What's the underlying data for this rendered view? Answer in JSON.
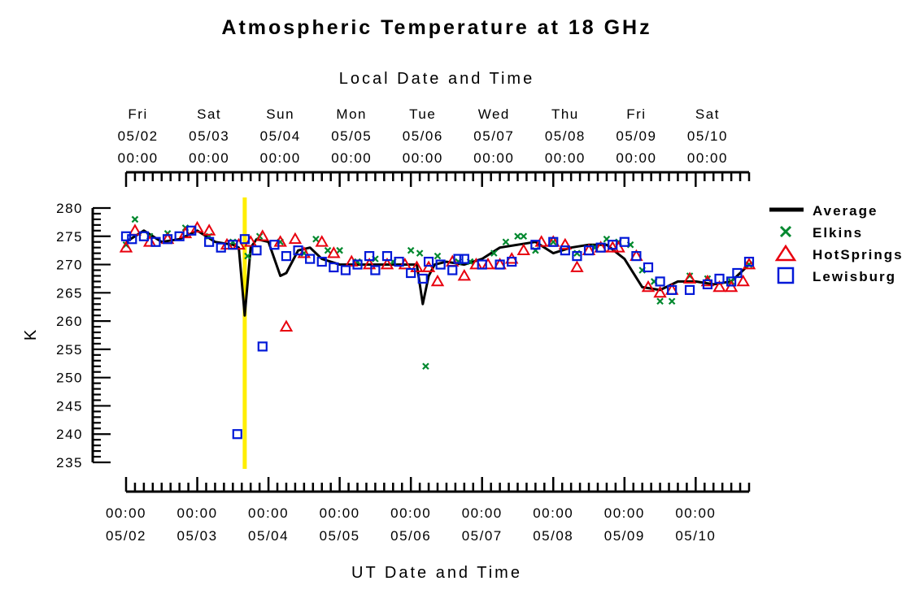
{
  "chart_data": {
    "type": "scatter",
    "title": "Atmospheric Temperature at 18 GHz",
    "top_axis_title": "Local Date and Time",
    "xlabel": "UT Date and Time",
    "ylabel": "K",
    "ylim": [
      235,
      280
    ],
    "yticks": [
      235,
      240,
      245,
      250,
      255,
      260,
      265,
      270,
      275,
      280
    ],
    "xlim": [
      "05/02 00:00",
      "05/10 18:00"
    ],
    "top_ticks": [
      {
        "day": "Fri",
        "date": "05/02",
        "time": "00:00"
      },
      {
        "day": "Sat",
        "date": "05/03",
        "time": "00:00"
      },
      {
        "day": "Sun",
        "date": "05/04",
        "time": "00:00"
      },
      {
        "day": "Mon",
        "date": "05/05",
        "time": "00:00"
      },
      {
        "day": "Tue",
        "date": "05/06",
        "time": "00:00"
      },
      {
        "day": "Wed",
        "date": "05/07",
        "time": "00:00"
      },
      {
        "day": "Thu",
        "date": "05/08",
        "time": "00:00"
      },
      {
        "day": "Fri",
        "date": "05/09",
        "time": "00:00"
      },
      {
        "day": "Sat",
        "date": "05/10",
        "time": "00:00"
      }
    ],
    "bottom_ticks": [
      {
        "time": "00:00",
        "date": "05/02"
      },
      {
        "time": "00:00",
        "date": "05/03"
      },
      {
        "time": "00:00",
        "date": "05/04"
      },
      {
        "time": "00:00",
        "date": "05/05"
      },
      {
        "time": "00:00",
        "date": "05/06"
      },
      {
        "time": "00:00",
        "date": "05/07"
      },
      {
        "time": "00:00",
        "date": "05/08"
      },
      {
        "time": "00:00",
        "date": "05/09"
      },
      {
        "time": "00:00",
        "date": "05/10"
      }
    ],
    "marker_line": {
      "x": "05/03 16:00",
      "color": "#ffee00"
    },
    "legend": {
      "position": "right"
    },
    "series": [
      {
        "name": "Average",
        "style": "line",
        "color": "#000000",
        "x": [
          "05/02 00:00",
          "05/02 06:00",
          "05/02 12:00",
          "05/02 18:00",
          "05/03 00:00",
          "05/03 06:00",
          "05/03 12:00",
          "05/03 14:00",
          "05/03 16:00",
          "05/03 18:00",
          "05/03 20:00",
          "05/04 00:00",
          "05/04 04:00",
          "05/04 06:00",
          "05/04 10:00",
          "05/04 14:00",
          "05/04 18:00",
          "05/05 00:00",
          "05/05 06:00",
          "05/05 12:00",
          "05/05 18:00",
          "05/05 22:00",
          "05/06 02:00",
          "05/06 04:00",
          "05/06 06:00",
          "05/06 08:00",
          "05/06 12:00",
          "05/06 18:00",
          "05/07 00:00",
          "05/07 06:00",
          "05/07 12:00",
          "05/07 18:00",
          "05/08 00:00",
          "05/08 06:00",
          "05/08 12:00",
          "05/08 18:00",
          "05/09 00:00",
          "05/09 06:00",
          "05/09 12:00",
          "05/09 18:00",
          "05/10 00:00",
          "05/10 06:00",
          "05/10 12:00",
          "05/10 18:00"
        ],
        "y": [
          274,
          276,
          274,
          274.5,
          276,
          274,
          273.5,
          273,
          261,
          273,
          274.5,
          274,
          268,
          268.5,
          272.5,
          273,
          271,
          270,
          270,
          270,
          270,
          270,
          270,
          263,
          268,
          270,
          270.5,
          270,
          271,
          273,
          273.5,
          274,
          272,
          273,
          273.5,
          273.5,
          271,
          266,
          265.5,
          267,
          267,
          266.5,
          267,
          270
        ]
      },
      {
        "name": "Elkins",
        "style": "x",
        "color": "#00882e",
        "x": [
          "05/02 00:00",
          "05/02 03:00",
          "05/02 08:00",
          "05/02 14:00",
          "05/02 20:00",
          "05/03 04:00",
          "05/03 12:00",
          "05/03 17:00",
          "05/03 21:00",
          "05/04 04:00",
          "05/04 12:00",
          "05/04 16:00",
          "05/04 20:00",
          "05/05 00:00",
          "05/05 06:00",
          "05/05 12:00",
          "05/05 18:00",
          "05/06 00:00",
          "05/06 03:00",
          "05/06 05:00",
          "05/06 09:00",
          "05/06 16:00",
          "05/06 20:00",
          "05/07 04:00",
          "05/07 08:00",
          "05/07 12:00",
          "05/07 14:00",
          "05/07 18:00",
          "05/08 00:00",
          "05/08 08:00",
          "05/08 14:00",
          "05/08 18:00",
          "05/08 22:00",
          "05/09 02:00",
          "05/09 06:00",
          "05/09 10:00",
          "05/09 12:00",
          "05/09 16:00",
          "05/09 22:00",
          "05/10 04:00",
          "05/10 12:00",
          "05/10 18:00"
        ],
        "y": [
          273.5,
          278,
          275,
          275.5,
          276.5,
          275,
          274,
          271.5,
          275,
          274,
          272,
          274.5,
          272.5,
          272.5,
          270.5,
          271,
          270.5,
          272.5,
          272,
          252,
          271.5,
          270.5,
          270.5,
          272,
          274,
          275,
          275,
          272.5,
          274,
          272,
          273,
          274.5,
          274,
          273.5,
          269,
          267,
          263.5,
          263.5,
          268,
          267.5,
          267,
          270
        ]
      },
      {
        "name": "HotSprings",
        "style": "triangle",
        "color": "#e8000e",
        "x": [
          "05/02 00:00",
          "05/02 03:00",
          "05/02 08:00",
          "05/02 14:00",
          "05/02 20:00",
          "05/03 00:00",
          "05/03 04:00",
          "05/03 10:00",
          "05/03 14:00",
          "05/03 18:00",
          "05/03 22:00",
          "05/04 04:00",
          "05/04 06:00",
          "05/04 09:00",
          "05/04 12:00",
          "05/04 18:00",
          "05/04 22:00",
          "05/05 04:00",
          "05/05 10:00",
          "05/05 16:00",
          "05/05 22:00",
          "05/06 02:00",
          "05/06 06:00",
          "05/06 09:00",
          "05/06 14:00",
          "05/06 18:00",
          "05/06 22:00",
          "05/07 02:00",
          "05/07 06:00",
          "05/07 10:00",
          "05/07 14:00",
          "05/07 20:00",
          "05/08 00:00",
          "05/08 04:00",
          "05/08 08:00",
          "05/08 12:00",
          "05/08 16:00",
          "05/08 20:00",
          "05/08 22:00",
          "05/09 04:00",
          "05/09 08:00",
          "05/09 12:00",
          "05/09 16:00",
          "05/09 22:00",
          "05/10 04:00",
          "05/10 08:00",
          "05/10 12:00",
          "05/10 16:00",
          "05/10 18:00"
        ],
        "y": [
          273,
          276,
          274,
          274.5,
          275.5,
          276.5,
          276,
          273.5,
          273.5,
          274,
          275,
          274,
          259,
          274.5,
          272,
          274,
          272,
          270.5,
          270,
          270,
          270,
          269.5,
          269.5,
          267,
          270.5,
          268,
          270,
          270,
          270,
          271,
          272.5,
          274,
          274,
          273.5,
          269.5,
          272.5,
          273,
          273,
          273,
          271.5,
          266,
          265,
          265.5,
          267.5,
          267,
          266,
          266,
          267,
          270
        ]
      },
      {
        "name": "Lewisburg",
        "style": "square",
        "color": "#0018d8",
        "x": [
          "05/02 00:00",
          "05/02 02:00",
          "05/02 06:00",
          "05/02 10:00",
          "05/02 14:00",
          "05/02 18:00",
          "05/02 22:00",
          "05/03 04:00",
          "05/03 08:00",
          "05/03 12:00",
          "05/03 13:30",
          "05/03 16:00",
          "05/03 20:00",
          "05/03 22:00",
          "05/04 02:00",
          "05/04 06:00",
          "05/04 10:00",
          "05/04 14:00",
          "05/04 18:00",
          "05/04 22:00",
          "05/05 02:00",
          "05/05 06:00",
          "05/05 10:00",
          "05/05 12:00",
          "05/05 16:00",
          "05/05 20:00",
          "05/06 00:00",
          "05/06 04:00",
          "05/06 06:00",
          "05/06 10:00",
          "05/06 14:00",
          "05/06 16:00",
          "05/06 18:00",
          "05/07 00:00",
          "05/07 06:00",
          "05/07 10:00",
          "05/07 18:00",
          "05/08 00:00",
          "05/08 04:00",
          "05/08 08:00",
          "05/08 12:00",
          "05/08 16:00",
          "05/08 20:00",
          "05/09 00:00",
          "05/09 04:00",
          "05/09 08:00",
          "05/09 12:00",
          "05/09 16:00",
          "05/09 22:00",
          "05/10 04:00",
          "05/10 08:00",
          "05/10 12:00",
          "05/10 14:00",
          "05/10 18:00"
        ],
        "y": [
          275,
          274.5,
          275,
          274,
          274.5,
          275,
          276,
          274,
          273,
          273.5,
          240,
          274.5,
          272.5,
          255.5,
          273.5,
          271.5,
          272.5,
          271,
          270.5,
          269.5,
          269,
          270,
          271.5,
          269,
          271.5,
          270.5,
          268.5,
          267.5,
          270.5,
          270,
          269,
          271,
          271,
          270,
          270,
          270.5,
          273.5,
          274,
          272.5,
          271.5,
          272.5,
          273,
          273.5,
          274,
          271.5,
          269.5,
          267,
          265.5,
          265.5,
          266.5,
          267.5,
          267,
          268.5,
          270.5
        ]
      }
    ]
  }
}
